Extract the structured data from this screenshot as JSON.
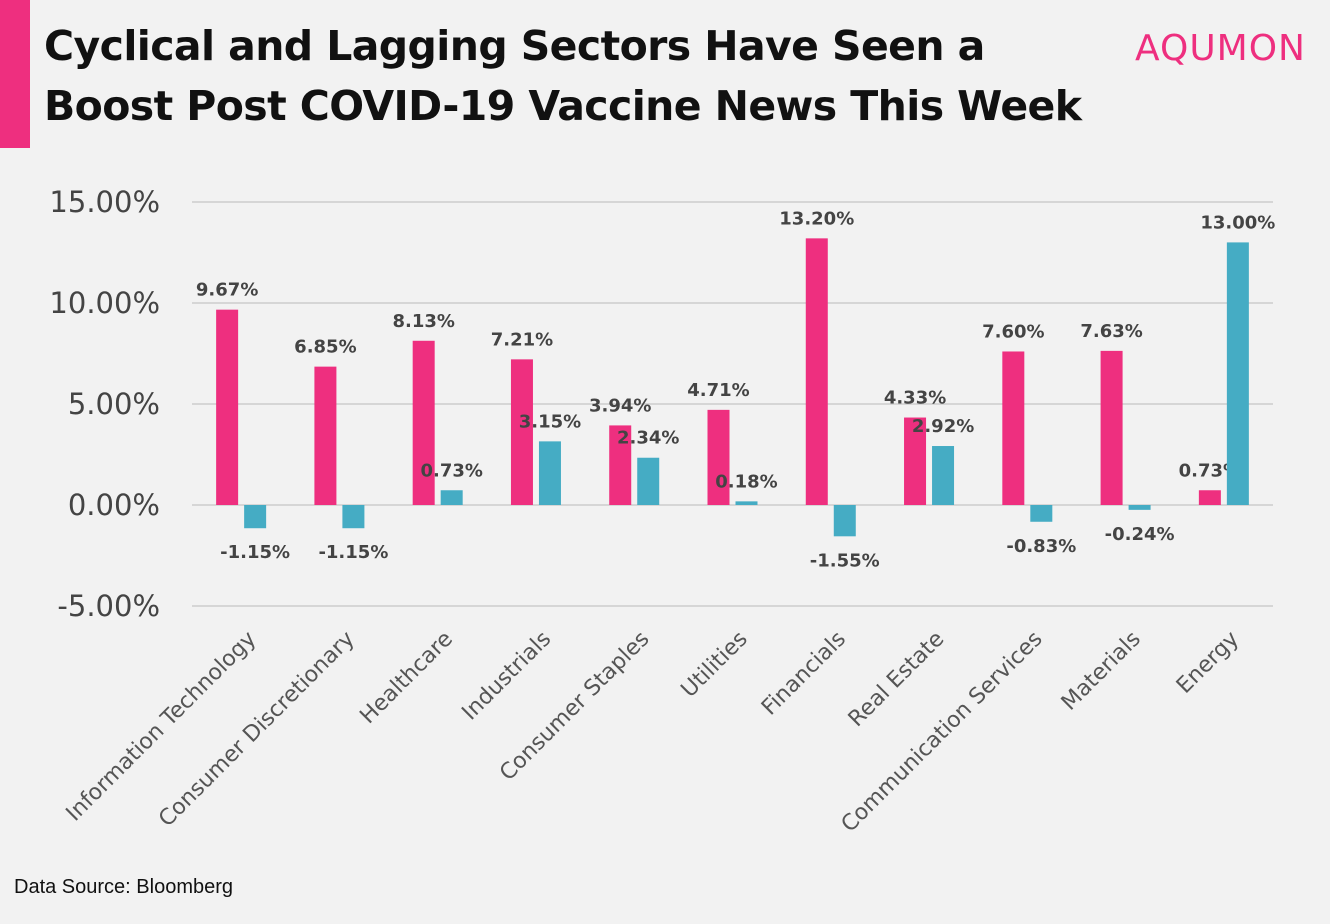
{
  "header": {
    "title_line1": "Cyclical and Lagging Sectors Have Seen a",
    "title_line2": "Boost Post COVID-19 Vaccine News This Week",
    "brand": "AQUMON",
    "source": "Data Source: Bloomberg"
  },
  "colors": {
    "accent": "#ee2f7f",
    "series1": "#ee2f7f",
    "series2": "#45acc4",
    "grid": "#cccccc"
  },
  "chart_data": {
    "type": "bar",
    "categories": [
      "Information Technology",
      "Consumer Discretionary",
      "Healthcare",
      "Industrials",
      "Consumer Staples",
      "Utilities",
      "Financials",
      "Real Estate",
      "Communication Services",
      "Materials",
      "Energy"
    ],
    "series": [
      {
        "values": [
          9.67,
          6.85,
          8.13,
          7.21,
          3.94,
          4.71,
          13.2,
          4.33,
          7.6,
          7.63,
          0.73
        ],
        "labels": [
          "9.67%",
          "6.85%",
          "8.13%",
          "7.21%",
          "3.94%",
          "4.71%",
          "13.20%",
          "4.33%",
          "7.60%",
          "7.63%",
          "0.73%"
        ]
      },
      {
        "values": [
          -1.15,
          -1.15,
          0.73,
          3.15,
          2.34,
          0.18,
          -1.55,
          2.92,
          -0.83,
          -0.24,
          13.0
        ],
        "labels": [
          "-1.15%",
          "-1.15%",
          "0.73%",
          "3.15%",
          "2.34%",
          "0.18%",
          "-1.55%",
          "2.92%",
          "-0.83%",
          "-0.24%",
          "13.00%"
        ]
      }
    ],
    "yticks": [
      "15.00%",
      "10.00%",
      "5.00%",
      "0.00%",
      "-5.00%"
    ],
    "ytick_values": [
      15,
      10,
      5,
      0,
      -5
    ],
    "ylim": [
      -5,
      15
    ],
    "grid": true,
    "legend": "none"
  }
}
